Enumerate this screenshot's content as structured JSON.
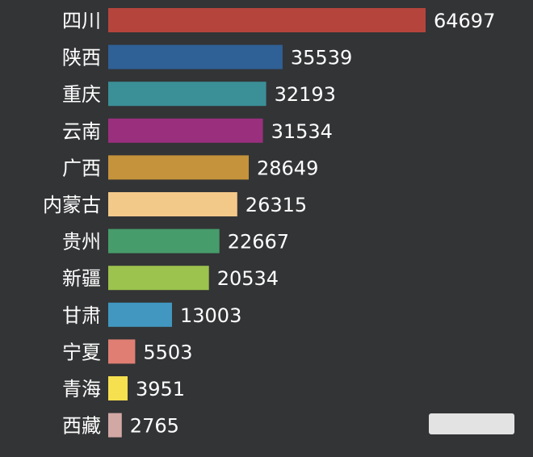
{
  "chart_data": {
    "type": "bar",
    "orientation": "horizontal",
    "title": "",
    "xlabel": "",
    "ylabel": "",
    "grid": false,
    "xlim": [
      0,
      64697
    ],
    "categories": [
      "四川",
      "陕西",
      "重庆",
      "云南",
      "广西",
      "内蒙古",
      "贵州",
      "新疆",
      "甘肃",
      "宁夏",
      "青海",
      "西藏"
    ],
    "values": [
      64697,
      35539,
      32193,
      31534,
      28649,
      26315,
      22667,
      20534,
      13003,
      5503,
      3951,
      2765
    ],
    "value_labels": [
      "64697",
      "35539",
      "32193",
      "31534",
      "28649",
      "26315",
      "22667",
      "20534",
      "13003",
      "5503",
      "3951",
      "2765"
    ],
    "colors": [
      "#b5453c",
      "#2f6096",
      "#3b8f97",
      "#9a2f7e",
      "#c5933b",
      "#f3c98a",
      "#479c6b",
      "#9cc34d",
      "#4197bf",
      "#e07e73",
      "#f6e04f",
      "#d2a8a5"
    ]
  },
  "theme": {
    "background": "#333436",
    "text_color": "#ffffff"
  }
}
